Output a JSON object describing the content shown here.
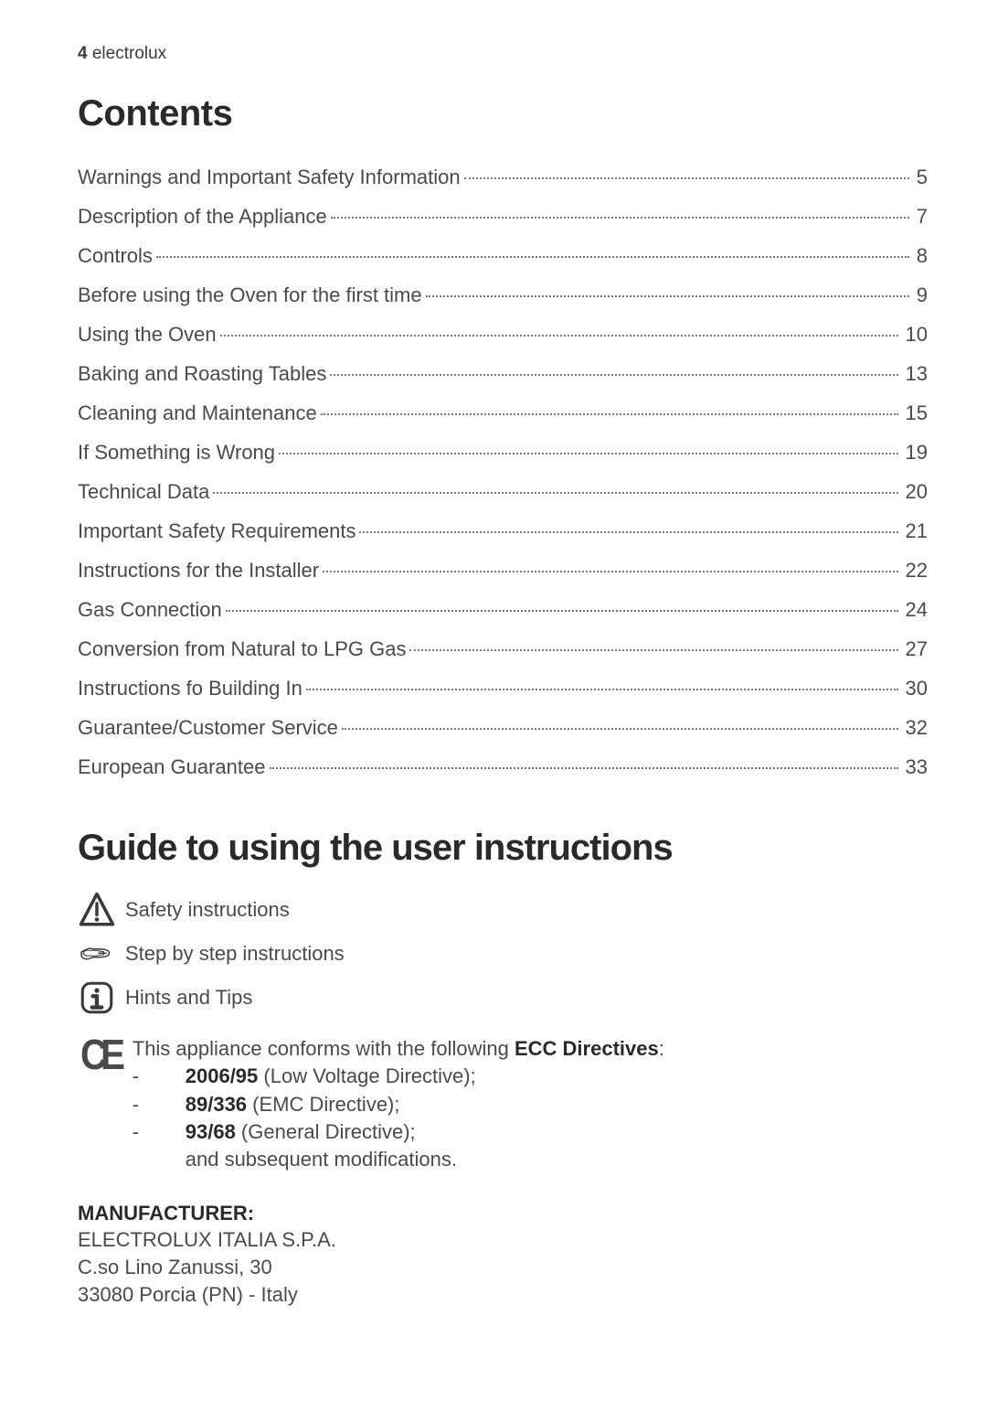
{
  "header": {
    "page_number": "4",
    "brand": "electrolux"
  },
  "contents": {
    "title": "Contents",
    "items": [
      {
        "label": "Warnings and Important Safety Information",
        "page": "5"
      },
      {
        "label": "Description of the Appliance",
        "page": "7"
      },
      {
        "label": "Controls",
        "page": "8"
      },
      {
        "label": "Before using the Oven for the first time",
        "page": "9"
      },
      {
        "label": "Using the Oven",
        "page": "10"
      },
      {
        "label": "Baking and Roasting Tables",
        "page": "13"
      },
      {
        "label": "Cleaning and Maintenance",
        "page": "15"
      },
      {
        "label": "If Something is Wrong",
        "page": "19"
      },
      {
        "label": "Technical Data",
        "page": "20"
      },
      {
        "label": "Important Safety Requirements",
        "page": "21"
      },
      {
        "label": "Instructions for the Installer",
        "page": "22"
      },
      {
        "label": "Gas Connection",
        "page": "24"
      },
      {
        "label": "Conversion from Natural to LPG Gas",
        "page": "27"
      },
      {
        "label": "Instructions fo Building In",
        "page": "30"
      },
      {
        "label": "Guarantee/Customer Service",
        "page": "32"
      },
      {
        "label": "European Guarantee",
        "page": "33"
      }
    ]
  },
  "guide": {
    "title": "Guide to using the user instructions",
    "icons": [
      {
        "name": "warning-triangle-icon",
        "label": "Safety instructions"
      },
      {
        "name": "pointing-hand-icon",
        "label": "Step by step instructions"
      },
      {
        "name": "info-box-icon",
        "label": "Hints and Tips"
      }
    ]
  },
  "ce": {
    "intro_prefix": "This appliance conforms with the following ",
    "intro_bold": "ECC Directives",
    "intro_suffix": ":",
    "lines": [
      {
        "bold": "2006/95",
        "rest": " (Low Voltage Directive);"
      },
      {
        "bold": "89/336",
        "rest": " (EMC Directive);"
      },
      {
        "bold": "93/68",
        "rest": " (General Directive);"
      }
    ],
    "trailer": "and subsequent modifications."
  },
  "manufacturer": {
    "heading": "MANUFACTURER:",
    "line1": "ELECTROLUX ITALIA S.P.A.",
    "line2": "C.so Lino Zanussi, 30",
    "line3": "33080 Porcia (PN) - Italy"
  },
  "style": {
    "text_color": "#4a4a4a",
    "heading_color": "#2a2a2a",
    "background": "#ffffff",
    "body_fontsize": 22,
    "title_fontsize": 40
  }
}
